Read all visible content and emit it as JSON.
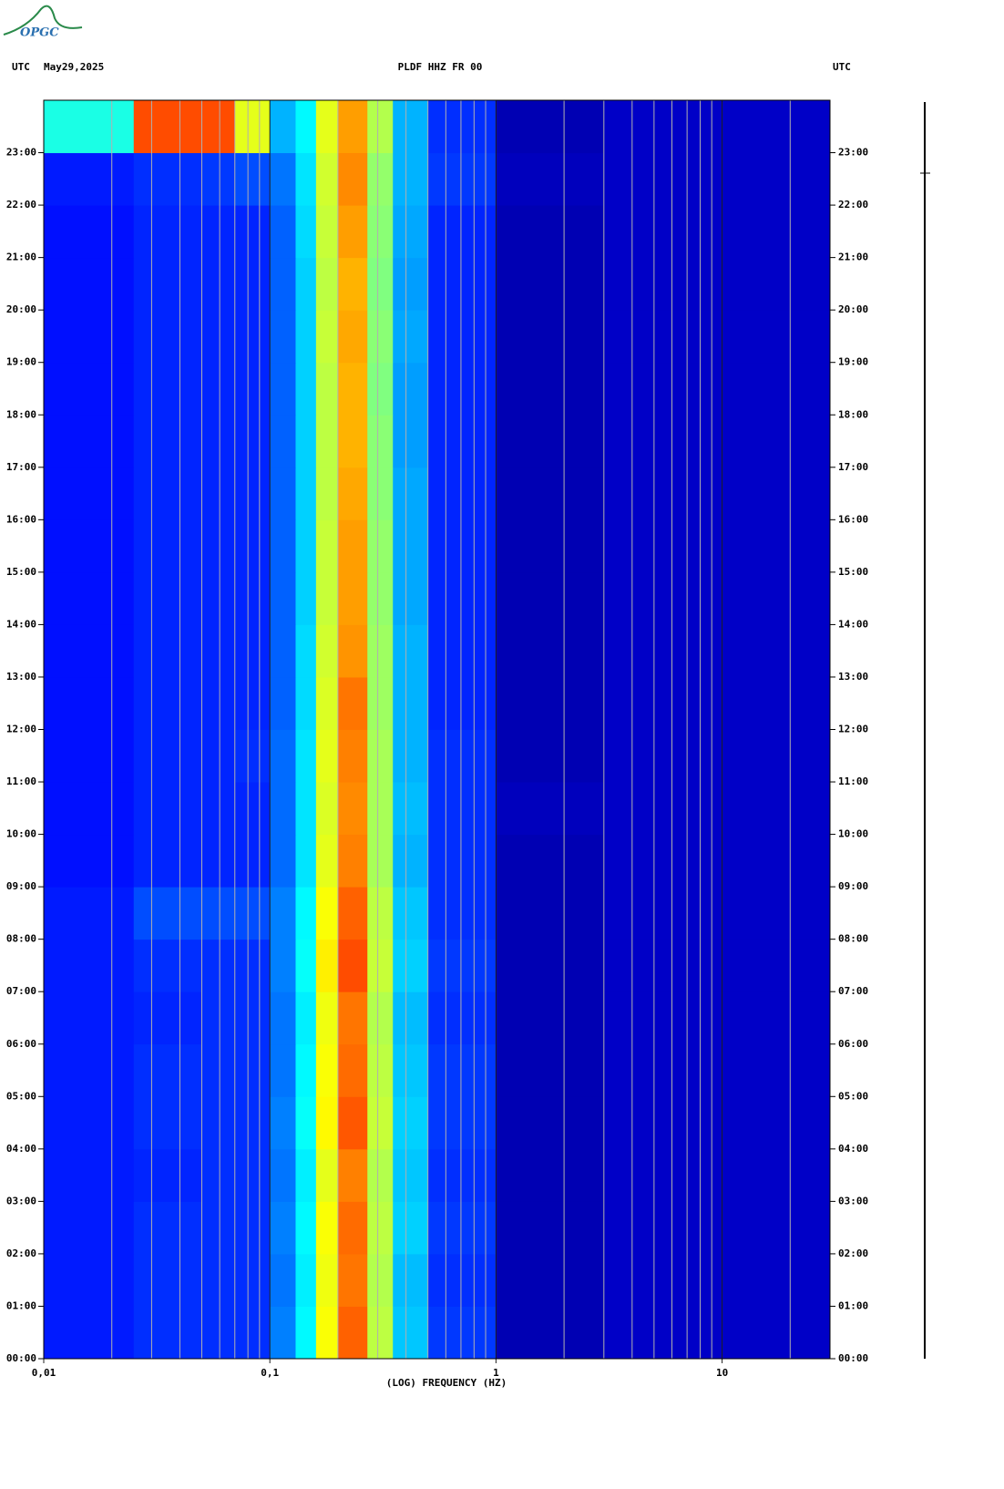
{
  "logo": "OPGC",
  "chart_data": {
    "type": "heatmap",
    "title": "PLDF HHZ FR 00",
    "left_label": "UTC",
    "date": "May29,2025",
    "right_label": "UTC",
    "xlabel": "(LOG) FREQUENCY (HZ)",
    "xscale": "log",
    "xlim": [
      0.01,
      30
    ],
    "xticks": [
      {
        "value": 0.01,
        "label": "0,01"
      },
      {
        "value": 0.1,
        "label": "0,1"
      },
      1,
      10
    ],
    "xminorticks": [
      0.02,
      0.03,
      0.04,
      0.05,
      0.06,
      0.07,
      0.08,
      0.09,
      0.2,
      0.3,
      0.4,
      0.5,
      0.6,
      0.7,
      0.8,
      0.9,
      2,
      3,
      4,
      5,
      6,
      7,
      8,
      9,
      20
    ],
    "ylim": [
      0,
      24
    ],
    "yticks": [
      {
        "value": 0,
        "label": "00:00"
      },
      {
        "value": 1,
        "label": "01:00"
      },
      {
        "value": 2,
        "label": "02:00"
      },
      {
        "value": 3,
        "label": "03:00"
      },
      {
        "value": 4,
        "label": "04:00"
      },
      {
        "value": 5,
        "label": "05:00"
      },
      {
        "value": 6,
        "label": "06:00"
      },
      {
        "value": 7,
        "label": "07:00"
      },
      {
        "value": 8,
        "label": "08:00"
      },
      {
        "value": 9,
        "label": "09:00"
      },
      {
        "value": 10,
        "label": "10:00"
      },
      {
        "value": 11,
        "label": "11:00"
      },
      {
        "value": 12,
        "label": "12:00"
      },
      {
        "value": 13,
        "label": "13:00"
      },
      {
        "value": 14,
        "label": "14:00"
      },
      {
        "value": 15,
        "label": "15:00"
      },
      {
        "value": 16,
        "label": "16:00"
      },
      {
        "value": 17,
        "label": "17:00"
      },
      {
        "value": 18,
        "label": "18:00"
      },
      {
        "value": 19,
        "label": "19:00"
      },
      {
        "value": 20,
        "label": "20:00"
      },
      {
        "value": 21,
        "label": "21:00"
      },
      {
        "value": 22,
        "label": "22:00"
      },
      {
        "value": 23,
        "label": "23:00"
      }
    ],
    "xbins": [
      0.01,
      0.025,
      0.05,
      0.07,
      0.1,
      0.13,
      0.16,
      0.2,
      0.27,
      0.35,
      0.5,
      1,
      3,
      30
    ],
    "ybins": [
      0,
      1,
      2,
      3,
      4,
      5,
      6,
      7,
      8,
      9,
      10,
      11,
      12,
      13,
      14,
      15,
      16,
      17,
      18,
      19,
      20,
      21,
      22,
      23,
      24
    ],
    "colormap": "jet",
    "values": [
      [
        0.15,
        0.17,
        0.17,
        0.17,
        0.25,
        0.37,
        0.62,
        0.78,
        0.56,
        0.32,
        0.18,
        0.05,
        0.07
      ],
      [
        0.15,
        0.17,
        0.17,
        0.17,
        0.24,
        0.36,
        0.61,
        0.76,
        0.55,
        0.31,
        0.17,
        0.05,
        0.07
      ],
      [
        0.15,
        0.17,
        0.17,
        0.17,
        0.25,
        0.37,
        0.62,
        0.77,
        0.56,
        0.33,
        0.18,
        0.05,
        0.07
      ],
      [
        0.15,
        0.16,
        0.17,
        0.17,
        0.24,
        0.36,
        0.6,
        0.75,
        0.55,
        0.32,
        0.17,
        0.05,
        0.07
      ],
      [
        0.15,
        0.17,
        0.17,
        0.17,
        0.25,
        0.38,
        0.63,
        0.79,
        0.57,
        0.33,
        0.18,
        0.05,
        0.07
      ],
      [
        0.15,
        0.17,
        0.17,
        0.17,
        0.24,
        0.37,
        0.62,
        0.77,
        0.56,
        0.32,
        0.18,
        0.05,
        0.07
      ],
      [
        0.15,
        0.16,
        0.17,
        0.17,
        0.24,
        0.36,
        0.61,
        0.76,
        0.55,
        0.31,
        0.17,
        0.05,
        0.07
      ],
      [
        0.15,
        0.17,
        0.17,
        0.17,
        0.25,
        0.38,
        0.64,
        0.8,
        0.57,
        0.33,
        0.18,
        0.05,
        0.07
      ],
      [
        0.15,
        0.2,
        0.2,
        0.2,
        0.25,
        0.37,
        0.62,
        0.78,
        0.56,
        0.32,
        0.17,
        0.05,
        0.07
      ],
      [
        0.14,
        0.16,
        0.16,
        0.16,
        0.23,
        0.35,
        0.6,
        0.75,
        0.54,
        0.3,
        0.17,
        0.05,
        0.07
      ],
      [
        0.14,
        0.16,
        0.16,
        0.16,
        0.23,
        0.35,
        0.59,
        0.74,
        0.54,
        0.31,
        0.17,
        0.06,
        0.07
      ],
      [
        0.14,
        0.16,
        0.16,
        0.17,
        0.23,
        0.35,
        0.6,
        0.75,
        0.54,
        0.3,
        0.17,
        0.05,
        0.07
      ],
      [
        0.14,
        0.16,
        0.16,
        0.16,
        0.22,
        0.34,
        0.59,
        0.76,
        0.53,
        0.3,
        0.16,
        0.05,
        0.07
      ],
      [
        0.14,
        0.16,
        0.16,
        0.16,
        0.22,
        0.34,
        0.58,
        0.73,
        0.53,
        0.3,
        0.16,
        0.05,
        0.07
      ],
      [
        0.14,
        0.16,
        0.16,
        0.16,
        0.22,
        0.33,
        0.57,
        0.72,
        0.52,
        0.29,
        0.16,
        0.05,
        0.07
      ],
      [
        0.14,
        0.16,
        0.16,
        0.16,
        0.22,
        0.33,
        0.57,
        0.72,
        0.52,
        0.29,
        0.16,
        0.05,
        0.07
      ],
      [
        0.14,
        0.16,
        0.16,
        0.16,
        0.22,
        0.33,
        0.56,
        0.71,
        0.51,
        0.29,
        0.16,
        0.05,
        0.07
      ],
      [
        0.14,
        0.16,
        0.16,
        0.16,
        0.22,
        0.33,
        0.56,
        0.7,
        0.51,
        0.28,
        0.16,
        0.05,
        0.07
      ],
      [
        0.14,
        0.16,
        0.16,
        0.16,
        0.22,
        0.33,
        0.56,
        0.7,
        0.5,
        0.28,
        0.16,
        0.05,
        0.07
      ],
      [
        0.14,
        0.16,
        0.16,
        0.16,
        0.22,
        0.33,
        0.57,
        0.71,
        0.51,
        0.29,
        0.16,
        0.05,
        0.07
      ],
      [
        0.14,
        0.16,
        0.16,
        0.16,
        0.22,
        0.33,
        0.56,
        0.7,
        0.5,
        0.28,
        0.16,
        0.05,
        0.07
      ],
      [
        0.14,
        0.16,
        0.16,
        0.16,
        0.22,
        0.34,
        0.57,
        0.72,
        0.51,
        0.29,
        0.16,
        0.05,
        0.07
      ],
      [
        0.15,
        0.17,
        0.18,
        0.2,
        0.24,
        0.35,
        0.58,
        0.74,
        0.52,
        0.3,
        0.18,
        0.06,
        0.07
      ],
      [
        0.4,
        0.8,
        0.8,
        0.6,
        0.3,
        0.37,
        0.6,
        0.72,
        0.55,
        0.3,
        0.17,
        0.05,
        0.07
      ]
    ]
  }
}
